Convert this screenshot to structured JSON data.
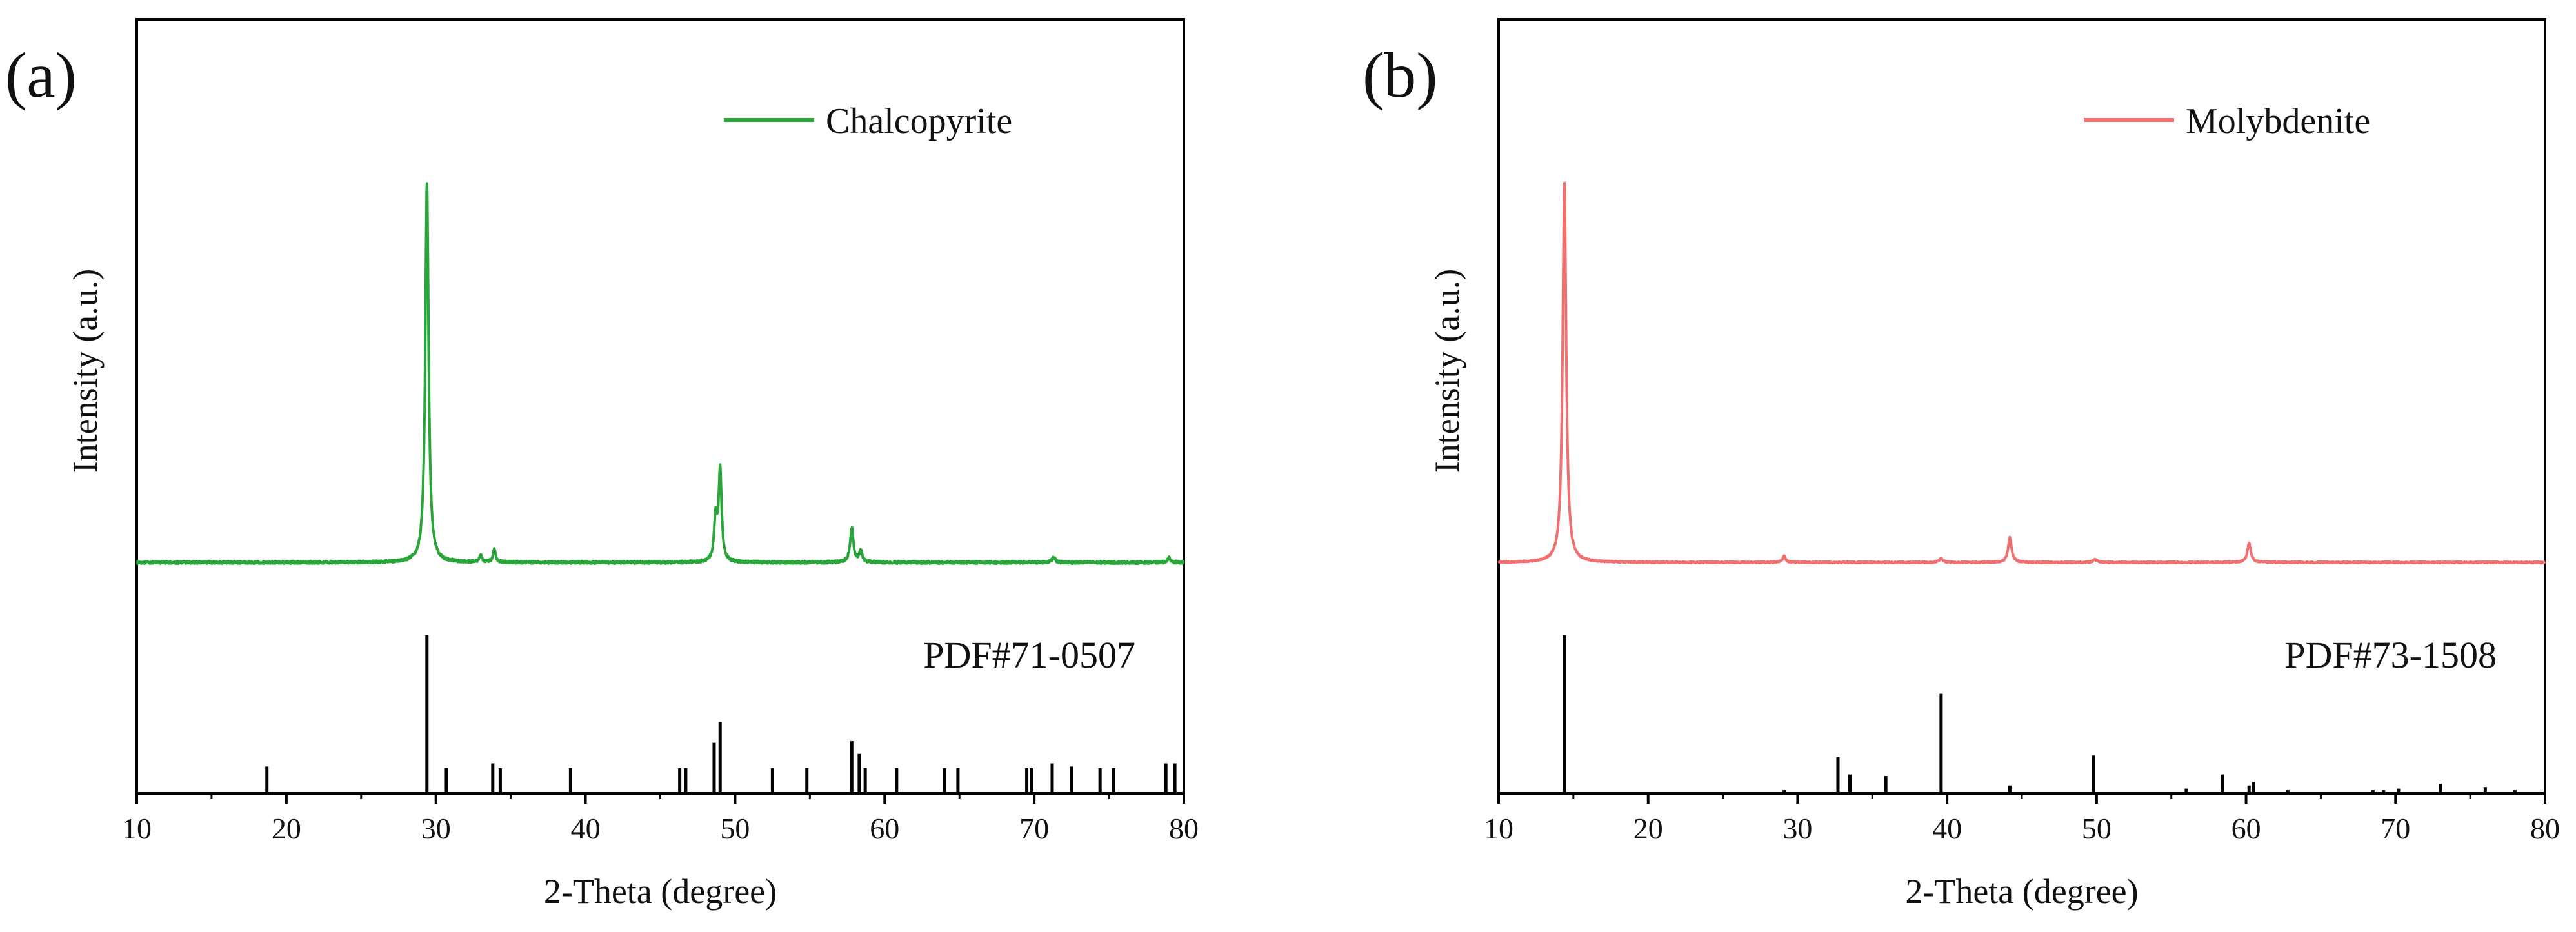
{
  "chart_data": [
    {
      "panel_label": "(a)",
      "type": "line",
      "xlabel": "2-Theta (degree)",
      "ylabel": "Intensity (a.u.)",
      "xlim": [
        10,
        80
      ],
      "xticks": [
        10,
        20,
        30,
        40,
        50,
        60,
        70,
        80
      ],
      "grid": false,
      "legend": {
        "label": "Chalcopyrite",
        "color": "#2aa53a",
        "position": "top-right"
      },
      "reference_label": "PDF#71-0507",
      "series": [
        {
          "name": "Chalcopyrite",
          "color": "#2aa53a",
          "baseline": 3,
          "noise": 0.35,
          "peaks": [
            {
              "x": 29.4,
              "y": 100,
              "w": 0.13
            },
            {
              "x": 33.0,
              "y": 2.0,
              "w": 0.1
            },
            {
              "x": 33.9,
              "y": 3.5,
              "w": 0.1
            },
            {
              "x": 48.7,
              "y": 11,
              "w": 0.12
            },
            {
              "x": 49.0,
              "y": 24,
              "w": 0.12
            },
            {
              "x": 57.8,
              "y": 9,
              "w": 0.13
            },
            {
              "x": 58.4,
              "y": 3,
              "w": 0.12
            },
            {
              "x": 71.3,
              "y": 1.5,
              "w": 0.12
            },
            {
              "x": 79.0,
              "y": 1.2,
              "w": 0.12
            }
          ]
        }
      ],
      "reference_peaks": [
        {
          "x": 18.7,
          "y": 17
        },
        {
          "x": 29.4,
          "y": 100
        },
        {
          "x": 30.7,
          "y": 16
        },
        {
          "x": 33.8,
          "y": 19
        },
        {
          "x": 34.3,
          "y": 16
        },
        {
          "x": 39.0,
          "y": 16
        },
        {
          "x": 46.3,
          "y": 16
        },
        {
          "x": 46.7,
          "y": 16
        },
        {
          "x": 48.6,
          "y": 32
        },
        {
          "x": 49.0,
          "y": 45
        },
        {
          "x": 52.5,
          "y": 16
        },
        {
          "x": 54.8,
          "y": 16
        },
        {
          "x": 57.8,
          "y": 33
        },
        {
          "x": 58.3,
          "y": 25
        },
        {
          "x": 58.7,
          "y": 16
        },
        {
          "x": 60.8,
          "y": 16
        },
        {
          "x": 64.0,
          "y": 16
        },
        {
          "x": 64.9,
          "y": 16
        },
        {
          "x": 69.5,
          "y": 16
        },
        {
          "x": 69.8,
          "y": 16
        },
        {
          "x": 71.2,
          "y": 19
        },
        {
          "x": 72.5,
          "y": 17
        },
        {
          "x": 74.4,
          "y": 16
        },
        {
          "x": 75.3,
          "y": 16
        },
        {
          "x": 78.8,
          "y": 19
        },
        {
          "x": 79.4,
          "y": 19
        }
      ]
    },
    {
      "panel_label": "(b)",
      "type": "line",
      "xlabel": "2-Theta (degree)",
      "ylabel": "Intensity (a.u.)",
      "xlim": [
        10,
        80
      ],
      "xticks": [
        10,
        20,
        30,
        40,
        50,
        60,
        70,
        80
      ],
      "grid": false,
      "legend": {
        "label": "Molybdenite",
        "color": "#f07070",
        "position": "top-right"
      },
      "reference_label": "PDF#73-1508",
      "series": [
        {
          "name": "Molybdenite",
          "color": "#f07070",
          "baseline": 2,
          "noise": 0.2,
          "peaks": [
            {
              "x": 14.4,
              "y": 100,
              "w": 0.14
            },
            {
              "x": 29.1,
              "y": 1.6,
              "w": 0.12
            },
            {
              "x": 39.6,
              "y": 1.0,
              "w": 0.15
            },
            {
              "x": 44.2,
              "y": 6.5,
              "w": 0.14
            },
            {
              "x": 49.9,
              "y": 0.8,
              "w": 0.15
            },
            {
              "x": 60.2,
              "y": 5,
              "w": 0.14
            }
          ]
        }
      ],
      "reference_peaks": [
        {
          "x": 14.4,
          "y": 100
        },
        {
          "x": 29.1,
          "y": 2
        },
        {
          "x": 32.7,
          "y": 23
        },
        {
          "x": 33.5,
          "y": 12
        },
        {
          "x": 35.9,
          "y": 11
        },
        {
          "x": 39.6,
          "y": 63
        },
        {
          "x": 44.2,
          "y": 5
        },
        {
          "x": 49.8,
          "y": 24
        },
        {
          "x": 56.0,
          "y": 3
        },
        {
          "x": 58.4,
          "y": 12
        },
        {
          "x": 60.2,
          "y": 5
        },
        {
          "x": 60.5,
          "y": 7
        },
        {
          "x": 62.8,
          "y": 2
        },
        {
          "x": 68.5,
          "y": 2
        },
        {
          "x": 69.2,
          "y": 2
        },
        {
          "x": 70.2,
          "y": 3
        },
        {
          "x": 73.0,
          "y": 6
        },
        {
          "x": 76.0,
          "y": 4
        },
        {
          "x": 78.0,
          "y": 2
        }
      ]
    }
  ]
}
